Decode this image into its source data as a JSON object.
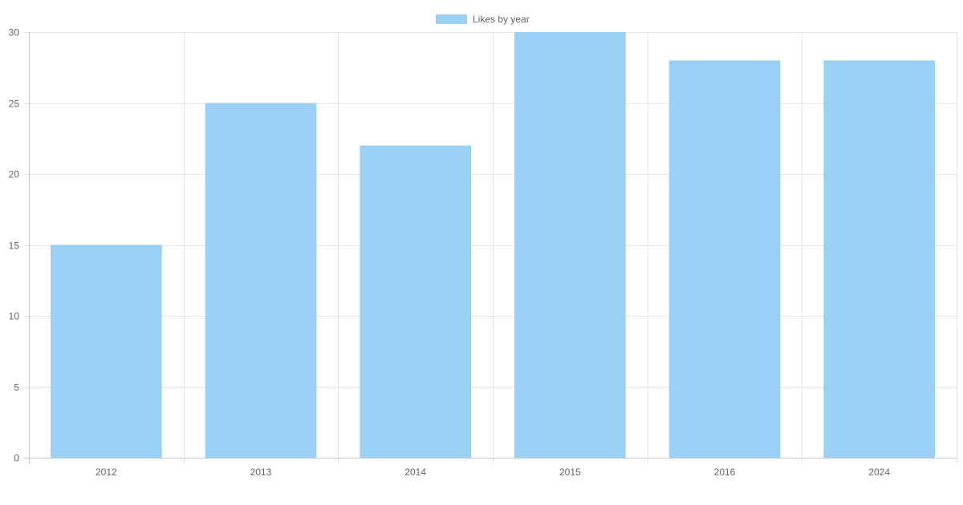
{
  "chart_data": {
    "type": "bar",
    "categories": [
      "2012",
      "2013",
      "2014",
      "2015",
      "2016",
      "2024"
    ],
    "series": [
      {
        "name": "Likes by year",
        "values": [
          15,
          25,
          22,
          30,
          28,
          28
        ]
      }
    ],
    "title": "",
    "xlabel": "",
    "ylabel": "",
    "ylim": [
      0,
      30
    ],
    "yticks": [
      "0",
      "5",
      "10",
      "15",
      "20",
      "25",
      "30"
    ],
    "grid": true,
    "legend_position": "top",
    "colors": {
      "bar_fill": "#9ad0f5",
      "bar_border": "#36a2eb",
      "grid": "#e5e5e5",
      "axis": "#c8c8c8",
      "text": "#666666"
    }
  }
}
